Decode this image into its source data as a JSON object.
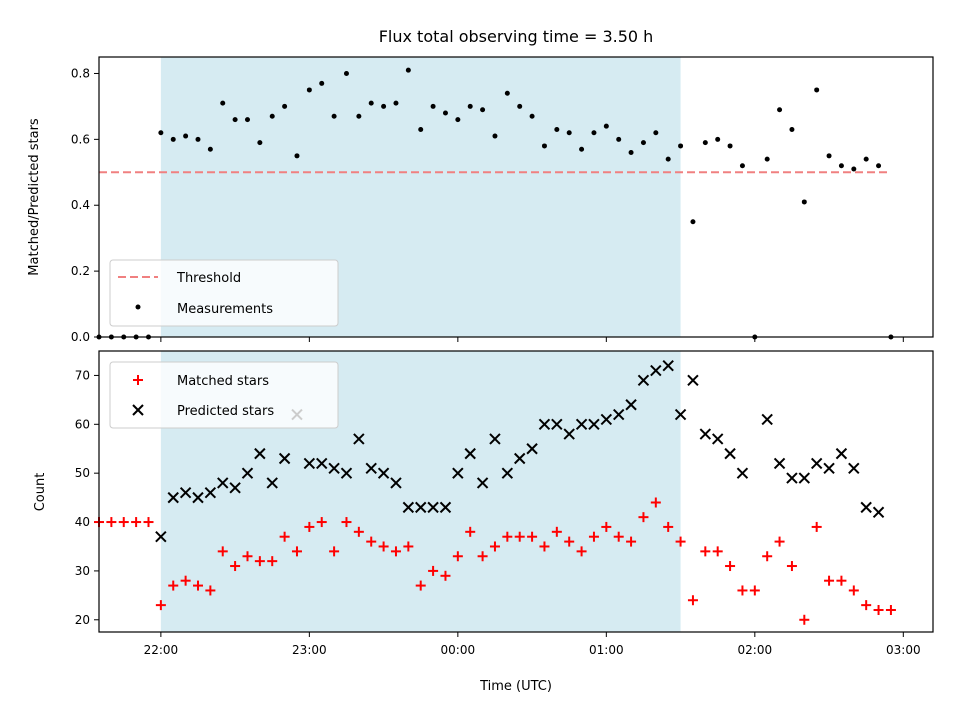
{
  "chart_data": [
    {
      "type": "scatter",
      "title": "Flux total observing time = 3.50 h",
      "xlabel": "",
      "ylabel": "Matched/Predicted stars",
      "ylim": [
        0,
        0.85
      ],
      "yticks": [
        "0.0",
        "0.2",
        "0.4",
        "0.6",
        "0.8"
      ],
      "xlim": [
        "21:35",
        "03:12"
      ],
      "shaded_span": [
        "22:00",
        "01:30"
      ],
      "legend_position": "lower-left",
      "threshold": {
        "name": "Threshold",
        "value": 0.5,
        "x_range": [
          "21:35",
          "02:55"
        ],
        "color": "#f08080"
      },
      "series": [
        {
          "name": "Measurements",
          "color": "#000000",
          "x": [
            "21:35",
            "21:40",
            "21:45",
            "21:50",
            "21:55",
            "22:00",
            "22:05",
            "22:10",
            "22:15",
            "22:20",
            "22:25",
            "22:30",
            "22:35",
            "22:40",
            "22:45",
            "22:50",
            "22:55",
            "23:00",
            "23:05",
            "23:10",
            "23:15",
            "23:20",
            "23:25",
            "23:30",
            "23:35",
            "23:40",
            "23:45",
            "23:50",
            "23:55",
            "00:00",
            "00:05",
            "00:10",
            "00:15",
            "00:20",
            "00:25",
            "00:30",
            "00:35",
            "00:40",
            "00:45",
            "00:50",
            "00:55",
            "01:00",
            "01:05",
            "01:10",
            "01:15",
            "01:20",
            "01:25",
            "01:30",
            "01:35",
            "01:40",
            "01:45",
            "01:50",
            "01:55",
            "02:00",
            "02:05",
            "02:10",
            "02:15",
            "02:20",
            "02:25",
            "02:30",
            "02:35",
            "02:40",
            "02:45",
            "02:50",
            "02:55"
          ],
          "y": [
            0.0,
            0.0,
            0.0,
            0.0,
            0.0,
            0.62,
            0.6,
            0.61,
            0.6,
            0.57,
            0.71,
            0.66,
            0.66,
            0.59,
            0.67,
            0.7,
            0.55,
            0.75,
            0.77,
            0.67,
            0.8,
            0.67,
            0.71,
            0.7,
            0.71,
            0.81,
            0.63,
            0.7,
            0.68,
            0.66,
            0.7,
            0.69,
            0.61,
            0.74,
            0.7,
            0.67,
            0.58,
            0.63,
            0.62,
            0.57,
            0.62,
            0.64,
            0.6,
            0.56,
            0.59,
            0.62,
            0.54,
            0.58,
            0.35,
            0.59,
            0.6,
            0.58,
            0.52,
            0.0,
            0.54,
            0.69,
            0.63,
            0.41,
            0.75,
            0.55,
            0.52,
            0.51,
            0.54,
            0.52,
            0.0
          ]
        }
      ]
    },
    {
      "type": "scatter",
      "title": "",
      "xlabel": "Time (UTC)",
      "ylabel": "Count",
      "ylim": [
        17.5,
        75
      ],
      "yticks": [
        "20",
        "30",
        "40",
        "50",
        "60",
        "70"
      ],
      "xticks": [
        "22:00",
        "23:00",
        "00:00",
        "01:00",
        "02:00",
        "03:00"
      ],
      "xlim": [
        "21:35",
        "03:12"
      ],
      "shaded_span": [
        "22:00",
        "01:30"
      ],
      "legend_position": "upper-left",
      "series": [
        {
          "name": "Matched stars",
          "color": "#ff0000",
          "marker": "plus",
          "x": [
            "21:35",
            "21:40",
            "21:45",
            "21:50",
            "21:55",
            "22:00",
            "22:05",
            "22:10",
            "22:15",
            "22:20",
            "22:25",
            "22:30",
            "22:35",
            "22:40",
            "22:45",
            "22:50",
            "22:55",
            "23:00",
            "23:05",
            "23:10",
            "23:15",
            "23:20",
            "23:25",
            "23:30",
            "23:35",
            "23:40",
            "23:45",
            "23:50",
            "23:55",
            "00:00",
            "00:05",
            "00:10",
            "00:15",
            "00:20",
            "00:25",
            "00:30",
            "00:35",
            "00:40",
            "00:45",
            "00:50",
            "00:55",
            "01:00",
            "01:05",
            "01:10",
            "01:15",
            "01:20",
            "01:25",
            "01:30",
            "01:35",
            "01:40",
            "01:45",
            "01:50",
            "01:55",
            "02:00",
            "02:05",
            "02:10",
            "02:15",
            "02:20",
            "02:25",
            "02:30",
            "02:35",
            "02:40",
            "02:45",
            "02:50",
            "02:55"
          ],
          "y": [
            40,
            40,
            40,
            40,
            40,
            23,
            27,
            28,
            27,
            26,
            34,
            31,
            33,
            32,
            32,
            37,
            34,
            39,
            40,
            34,
            40,
            38,
            36,
            35,
            34,
            35,
            27,
            30,
            29,
            33,
            38,
            33,
            35,
            37,
            37,
            37,
            35,
            38,
            36,
            34,
            37,
            39,
            37,
            36,
            41,
            44,
            39,
            36,
            24,
            34,
            34,
            31,
            26,
            26,
            33,
            36,
            31,
            20,
            39,
            28,
            28,
            26,
            23,
            22,
            22
          ]
        },
        {
          "name": "Predicted stars",
          "color": "#000000",
          "marker": "x",
          "x": [
            "22:00",
            "22:05",
            "22:10",
            "22:15",
            "22:20",
            "22:25",
            "22:30",
            "22:35",
            "22:40",
            "22:45",
            "22:50",
            "22:55",
            "23:00",
            "23:05",
            "23:10",
            "23:15",
            "23:20",
            "23:25",
            "23:30",
            "23:35",
            "23:40",
            "23:45",
            "23:50",
            "23:55",
            "00:00",
            "00:05",
            "00:10",
            "00:15",
            "00:20",
            "00:25",
            "00:30",
            "00:35",
            "00:40",
            "00:45",
            "00:50",
            "00:55",
            "01:00",
            "01:05",
            "01:10",
            "01:15",
            "01:20",
            "01:25",
            "01:30",
            "01:35",
            "01:40",
            "01:45",
            "01:50",
            "01:55",
            "02:05",
            "02:10",
            "02:15",
            "02:20",
            "02:25",
            "02:30",
            "02:35",
            "02:40",
            "02:45",
            "02:50"
          ],
          "y": [
            37,
            45,
            46,
            45,
            46,
            48,
            47,
            50,
            54,
            48,
            53,
            62,
            52,
            52,
            51,
            50,
            57,
            51,
            50,
            48,
            43,
            43,
            43,
            43,
            50,
            54,
            48,
            57,
            50,
            53,
            55,
            60,
            60,
            58,
            60,
            60,
            61,
            62,
            64,
            69,
            71,
            72,
            62,
            69,
            58,
            57,
            54,
            50,
            61,
            52,
            49,
            49,
            52,
            51,
            54,
            51,
            43,
            42
          ]
        }
      ]
    }
  ]
}
